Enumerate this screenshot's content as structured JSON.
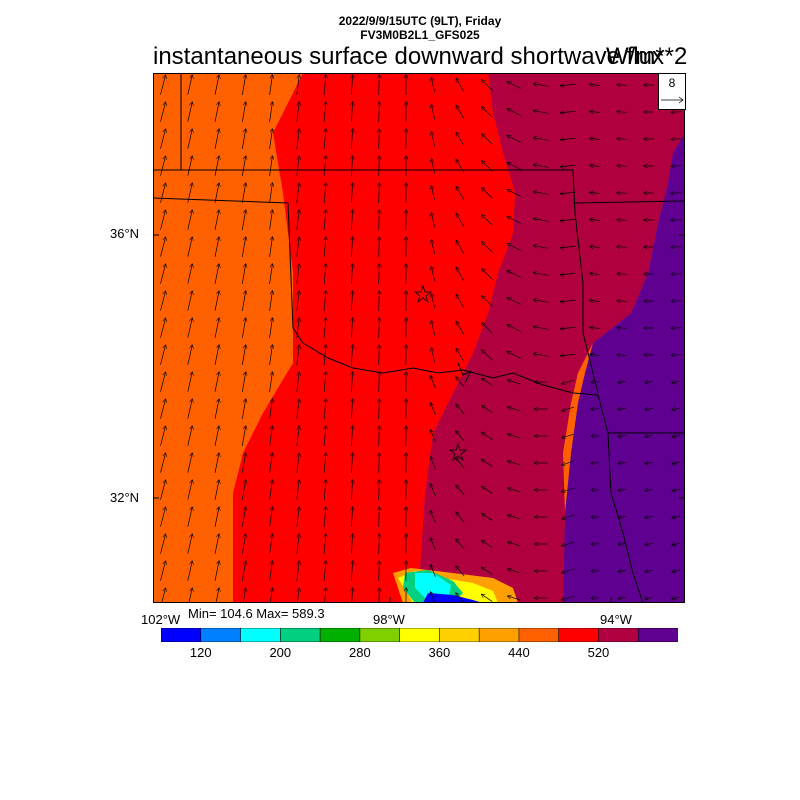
{
  "header": {
    "valid_time": "2022/9/9/15UTC (9LT), Friday",
    "model": "FV3M0B2L1_GFS025",
    "title": "instantaneous surface downward shortwave flux",
    "units": "W/m**2"
  },
  "reference_vector": {
    "value": "8"
  },
  "stats": {
    "text": "Min= 104.6 Max= 589.3",
    "min": 104.6,
    "max": 589.3
  },
  "axes": {
    "lat_labels": [
      "36°N",
      "32°N"
    ],
    "lon_labels": [
      "102°W",
      "98°W",
      "94°W"
    ]
  },
  "colorbar": {
    "colors": [
      "#0000ff",
      "#0080ff",
      "#00ffff",
      "#00d080",
      "#00b000",
      "#80d000",
      "#ffff00",
      "#ffd000",
      "#ffa000",
      "#ff6000",
      "#ff0000",
      "#b00040",
      "#600090"
    ],
    "labels": [
      "120",
      "200",
      "280",
      "360",
      "440",
      "520"
    ]
  },
  "map": {
    "features": [
      "state-boundaries",
      "wind-vectors",
      "city-markers"
    ],
    "markers": [
      "star",
      "star"
    ]
  }
}
